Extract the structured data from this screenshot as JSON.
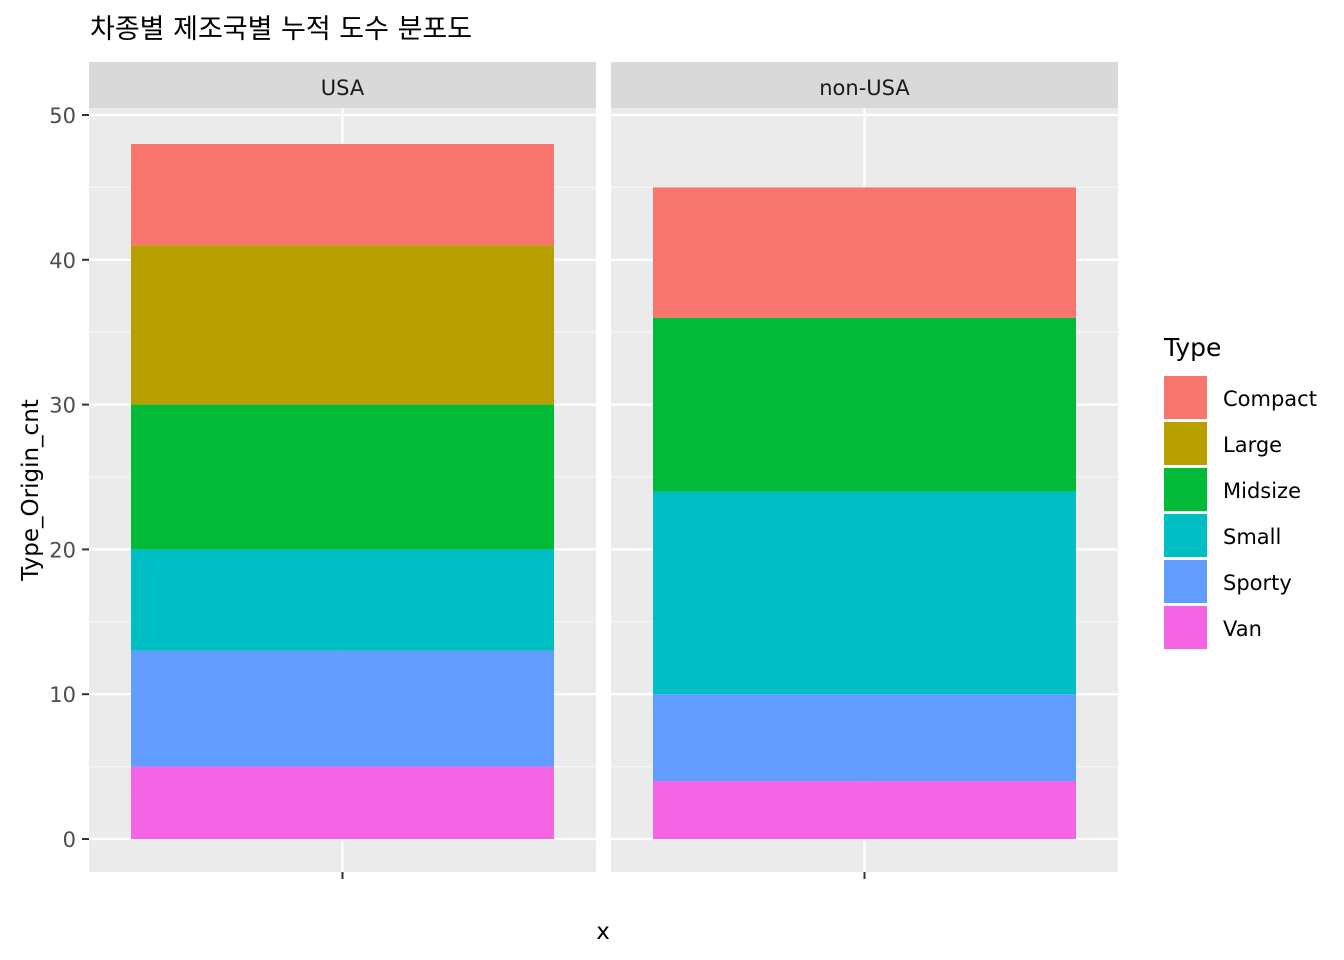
{
  "chart_data": {
    "type": "bar",
    "stacked": true,
    "title": "차종별 제조국별 누적 도수 분포도",
    "xlabel": "x",
    "ylabel": "Type_Origin_cnt",
    "ylim": [
      0,
      52.4
    ],
    "yticks": [
      0,
      10,
      20,
      30,
      40,
      50
    ],
    "grid": true,
    "legend_position": "right",
    "legend_title": "Type",
    "facets": [
      "USA",
      "non-USA"
    ],
    "series": [
      {
        "name": "Compact",
        "color": "#F8766D",
        "values": [
          7,
          9
        ]
      },
      {
        "name": "Large",
        "color": "#B79F00",
        "values": [
          11,
          0
        ]
      },
      {
        "name": "Midsize",
        "color": "#00BA38",
        "values": [
          10,
          12
        ]
      },
      {
        "name": "Small",
        "color": "#00BFC4",
        "values": [
          7,
          14
        ]
      },
      {
        "name": "Sporty",
        "color": "#619CFF",
        "values": [
          8,
          6
        ]
      },
      {
        "name": "Van",
        "color": "#F564E3",
        "values": [
          5,
          4
        ]
      }
    ]
  }
}
